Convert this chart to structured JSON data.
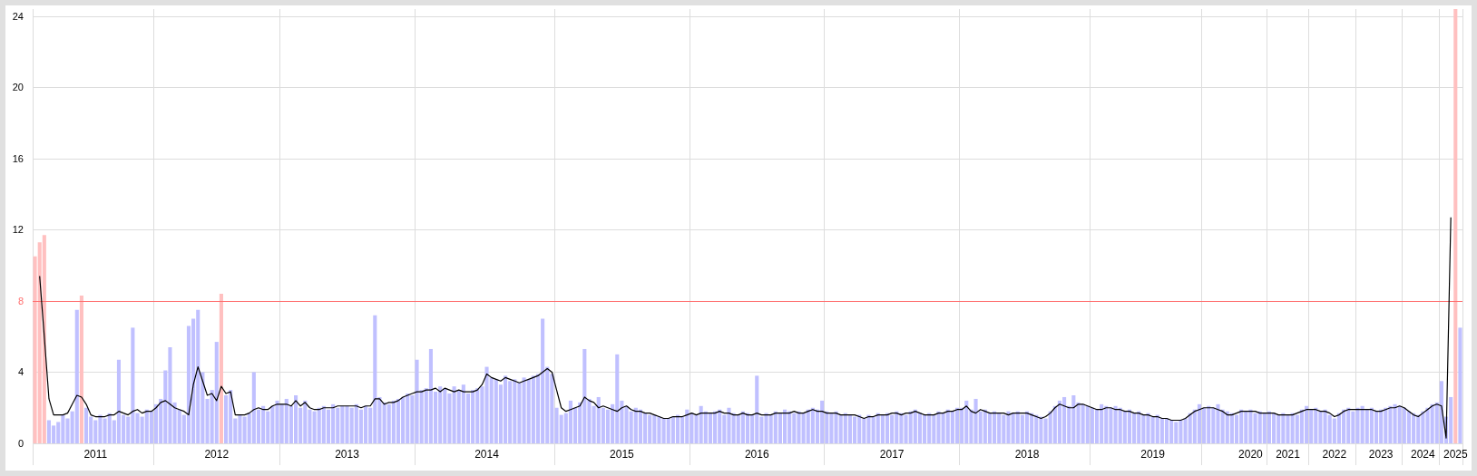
{
  "chart_data": {
    "type": "bar",
    "ylim": [
      0,
      24.4
    ],
    "yticks": [
      0,
      4,
      8,
      12,
      16,
      20,
      24
    ],
    "categories": [
      null,
      null,
      null,
      null,
      null,
      null,
      null,
      null,
      null,
      null,
      null,
      null,
      null,
      "2011",
      null,
      null,
      null,
      null,
      null,
      null,
      null,
      null,
      null,
      null,
      null,
      null,
      null,
      null,
      null,
      null,
      null,
      null,
      null,
      null,
      null,
      null,
      null,
      null,
      null,
      "2012",
      null,
      null,
      null,
      null,
      null,
      null,
      null,
      null,
      null,
      null,
      null,
      null,
      null,
      null,
      null,
      null,
      null,
      null,
      null,
      null,
      null,
      null,
      null,
      null,
      null,
      null,
      null,
      "2013",
      null,
      null,
      null,
      null,
      null,
      null,
      null,
      null,
      null,
      null,
      null,
      null,
      null,
      null,
      null,
      null,
      null,
      null,
      null,
      null,
      null,
      null,
      null,
      null,
      null,
      null,
      null,
      null,
      null,
      "2014",
      null,
      null,
      null,
      null,
      null,
      null,
      null,
      null,
      null,
      null,
      null,
      null,
      null,
      null,
      null,
      null,
      null,
      null,
      null,
      null,
      null,
      null,
      null,
      null,
      null,
      null,
      null,
      null,
      "2015",
      null,
      null,
      null,
      null,
      null,
      null,
      null,
      null,
      null,
      null,
      null,
      null,
      null,
      null,
      null,
      null,
      null,
      null,
      null,
      null,
      null,
      null,
      null,
      null,
      null,
      null,
      null,
      null,
      "2016",
      null,
      null,
      null,
      null,
      null,
      null,
      null,
      null,
      null,
      null,
      null,
      null,
      null,
      null,
      null,
      null,
      null,
      null,
      null,
      null,
      null,
      null,
      null,
      null,
      null,
      null,
      null,
      null,
      "2017",
      null,
      null,
      null,
      null,
      null,
      null,
      null,
      null,
      null,
      null,
      null,
      null,
      null,
      null,
      null,
      null,
      null,
      null,
      null,
      null,
      null,
      null,
      null,
      null,
      null,
      null,
      null,
      null,
      "2018",
      null,
      null,
      null,
      null,
      null,
      null,
      null,
      null,
      null,
      null,
      null,
      null,
      null,
      null,
      null,
      null,
      null,
      null,
      null,
      null,
      null,
      null,
      null,
      null,
      null,
      null,
      "2019",
      null,
      null,
      null,
      null,
      null,
      null,
      null,
      null,
      null,
      null,
      null,
      null,
      null,
      null,
      null,
      null,
      null,
      null,
      null,
      null,
      "2020",
      null,
      null,
      null,
      null,
      null,
      null,
      null,
      "2021",
      null,
      null,
      null,
      null,
      null,
      null,
      null,
      null,
      null,
      "2022",
      null,
      null,
      null,
      null,
      null,
      null,
      null,
      null,
      null,
      "2023",
      null,
      null,
      null,
      null,
      null,
      null,
      null,
      null,
      "2024",
      null,
      null,
      null,
      null,
      null,
      null,
      "2025",
      null
    ],
    "grid": true,
    "series": [
      {
        "color": "#c0c0ff",
        "values": [
          null,
          null,
          null,
          1.3,
          1.0,
          1.2,
          1.6,
          1.4,
          1.8,
          7.5,
          null,
          2.0,
          1.5,
          1.3,
          1.6,
          1.4,
          1.7,
          1.3,
          4.7,
          1.6,
          1.5,
          6.5,
          1.7,
          1.5,
          1.9,
          1.8,
          2.2,
          2.5,
          4.1,
          5.4,
          2.3,
          1.9,
          1.6,
          6.6,
          7.0,
          7.5,
          4.0,
          2.5,
          3.0,
          5.7,
          null,
          2.7,
          3.0,
          1.4,
          1.6,
          1.5,
          1.7,
          4.0,
          1.9,
          2.1,
          1.8,
          2.1,
          2.4,
          2.2,
          2.5,
          2.1,
          2.7,
          2.0,
          2.4,
          1.9,
          1.8,
          2.0,
          2.1,
          1.9,
          2.2,
          2.0,
          2.1,
          2.1,
          2.0,
          2.2,
          1.9,
          2.1,
          2.0,
          7.2,
          2.6,
          2.3,
          2.2,
          2.4,
          2.5,
          2.6,
          2.8,
          2.7,
          4.7,
          3.0,
          3.1,
          5.3,
          2.9,
          3.2,
          3.1,
          2.8,
          3.2,
          3.0,
          3.3,
          2.8,
          3.0,
          3.1,
          3.2,
          4.3,
          3.7,
          3.6,
          3.3,
          3.8,
          3.5,
          3.6,
          3.4,
          3.7,
          3.6,
          3.8,
          3.9,
          7.0,
          4.3,
          3.9,
          2.0,
          1.6,
          1.7,
          2.4,
          2.0,
          2.3,
          5.3,
          2.5,
          2.1,
          2.6,
          2.0,
          1.9,
          2.2,
          5.0,
          2.4,
          2.1,
          1.8,
          2.0,
          1.9,
          1.7,
          1.6,
          1.6,
          1.5,
          1.4,
          1.4,
          1.5,
          1.6,
          1.5,
          1.9,
          1.7,
          1.6,
          2.1,
          1.8,
          1.7,
          1.8,
          1.9,
          1.6,
          2.0,
          1.7,
          1.6,
          1.8,
          1.7,
          1.6,
          3.8,
          1.5,
          1.7,
          1.6,
          1.8,
          1.7,
          1.9,
          1.8,
          1.7,
          1.8,
          1.7,
          1.9,
          2.0,
          1.9,
          2.4,
          1.8,
          1.7,
          1.8,
          1.6,
          1.7,
          1.6,
          1.5,
          1.6,
          1.4,
          1.6,
          1.5,
          1.7,
          1.6,
          1.7,
          1.6,
          1.8,
          1.7,
          1.6,
          1.8,
          1.9,
          1.7,
          1.6,
          1.7,
          1.6,
          1.8,
          1.7,
          1.9,
          1.8,
          2.0,
          2.0,
          2.4,
          1.9,
          2.5,
          1.8,
          1.9,
          1.7,
          1.8,
          1.7,
          1.6,
          1.8,
          1.7,
          1.8,
          1.6,
          1.8,
          1.7,
          1.6,
          1.5,
          1.4,
          1.8,
          2.1,
          2.4,
          2.6,
          2.1,
          2.7,
          2.3,
          2.2,
          2.1,
          2.0,
          1.9,
          2.2,
          2.1,
          2.0,
          2.1,
          2.0,
          1.8,
          1.9,
          1.7,
          1.8,
          1.6,
          1.7,
          1.5,
          1.6,
          1.4,
          1.4,
          1.3,
          1.2,
          1.3,
          1.4,
          1.7,
          1.9,
          2.2,
          2.0,
          2.1,
          2.0,
          2.2,
          1.9,
          1.8,
          1.7,
          1.6,
          1.9,
          1.8,
          1.9,
          1.7,
          1.8,
          1.7,
          1.8,
          1.7,
          1.6,
          1.7,
          1.6,
          1.7,
          1.6,
          1.9,
          2.1,
          1.9,
          2.0,
          1.8,
          1.9,
          1.6,
          1.4,
          1.7,
          1.9,
          2.0,
          1.8,
          2.0,
          2.1,
          1.9,
          2.0,
          1.8,
          1.9,
          2.0,
          2.1,
          2.2,
          2.1,
          2.0,
          1.8,
          1.7,
          1.6,
          1.8,
          2.0,
          2.2,
          2.3,
          3.5,
          1.5,
          2.6,
          null,
          6.5
        ]
      },
      {
        "color": "#ffc0c0",
        "values": [
          10.5,
          11.3,
          11.7,
          null,
          null,
          null,
          null,
          null,
          null,
          null,
          8.3,
          null,
          null,
          null,
          null,
          null,
          null,
          null,
          null,
          null,
          null,
          null,
          null,
          null,
          null,
          null,
          null,
          null,
          null,
          null,
          null,
          null,
          null,
          null,
          null,
          null,
          null,
          null,
          null,
          null,
          8.4,
          null,
          null,
          null,
          null,
          null,
          null,
          null,
          null,
          null,
          null,
          null,
          null,
          null,
          null,
          null,
          null,
          null,
          null,
          null,
          null,
          null,
          null,
          null,
          null,
          null,
          null,
          null,
          null,
          null,
          null,
          null,
          null,
          null,
          null,
          null,
          null,
          null,
          null,
          null,
          null,
          null,
          null,
          null,
          null,
          null,
          null,
          null,
          null,
          null,
          null,
          null,
          null,
          null,
          null,
          null,
          null,
          null,
          null,
          null,
          null,
          null,
          null,
          null,
          null,
          null,
          null,
          null,
          null,
          null,
          null,
          null,
          null,
          null,
          null,
          null,
          null,
          null,
          null,
          null,
          null,
          null,
          null,
          null,
          null,
          null,
          null,
          null,
          null,
          null,
          null,
          null,
          null,
          null,
          null,
          null,
          null,
          null,
          null,
          null,
          null,
          null,
          null,
          null,
          null,
          null,
          null,
          null,
          null,
          null,
          null,
          null,
          null,
          null,
          null,
          null,
          null,
          null,
          null,
          null,
          null,
          null,
          null,
          null,
          null,
          null,
          null,
          null,
          null,
          null,
          null,
          null,
          null,
          null,
          null,
          null,
          null,
          null,
          null,
          null,
          null,
          null,
          null,
          null,
          null,
          null,
          null,
          null,
          null,
          null,
          null,
          null,
          null,
          null,
          null,
          null,
          null,
          null,
          null,
          null,
          null,
          null,
          null,
          null,
          null,
          null,
          null,
          null,
          null,
          null,
          null,
          null,
          null,
          null,
          null,
          null,
          null,
          null,
          null,
          null,
          null,
          null,
          null,
          null,
          null,
          null,
          null,
          null,
          null,
          null,
          null,
          null,
          null,
          null,
          null,
          null,
          null,
          null,
          null,
          null,
          null,
          null,
          null,
          null,
          null,
          null,
          null,
          null,
          null,
          null,
          null,
          null,
          null,
          null,
          null,
          null,
          null,
          null,
          null,
          null,
          null,
          null,
          null,
          null,
          null,
          null,
          null,
          null,
          null,
          null,
          null,
          null,
          null,
          null,
          null,
          null,
          null,
          null,
          null,
          null,
          null,
          null,
          null,
          null,
          null,
          null,
          null,
          null,
          null,
          null,
          null,
          null,
          null,
          null,
          null,
          null,
          null,
          null,
          null,
          null,
          null,
          null,
          null,
          null,
          null,
          24.4,
          null
        ]
      },
      {
        "type": "line",
        "color": "#000000",
        "values": [
          null,
          9.4,
          6.0,
          2.5,
          1.6,
          1.6,
          1.6,
          1.7,
          2.2,
          2.7,
          2.6,
          2.2,
          1.6,
          1.5,
          1.5,
          1.5,
          1.6,
          1.6,
          1.8,
          1.7,
          1.6,
          1.8,
          1.9,
          1.7,
          1.8,
          1.8,
          2.0,
          2.3,
          2.4,
          2.2,
          2.0,
          1.9,
          1.8,
          1.6,
          3.3,
          4.3,
          3.5,
          2.7,
          2.8,
          2.4,
          3.2,
          2.8,
          2.9,
          1.6,
          1.6,
          1.6,
          1.7,
          1.9,
          2.0,
          1.9,
          1.9,
          2.1,
          2.2,
          2.2,
          2.2,
          2.1,
          2.4,
          2.1,
          2.3,
          2.0,
          1.9,
          1.9,
          2.0,
          2.0,
          2.0,
          2.1,
          2.1,
          2.1,
          2.1,
          2.1,
          2.0,
          2.1,
          2.1,
          2.5,
          2.5,
          2.2,
          2.3,
          2.3,
          2.4,
          2.6,
          2.7,
          2.8,
          2.9,
          2.9,
          3.0,
          3.0,
          3.1,
          2.9,
          3.1,
          3.0,
          2.9,
          3.0,
          2.9,
          2.9,
          2.9,
          3.0,
          3.3,
          3.9,
          3.7,
          3.6,
          3.5,
          3.7,
          3.6,
          3.5,
          3.4,
          3.5,
          3.6,
          3.7,
          3.8,
          4.0,
          4.2,
          4.0,
          3.0,
          2.0,
          1.8,
          1.9,
          2.0,
          2.1,
          2.6,
          2.4,
          2.3,
          2.0,
          2.1,
          2.0,
          1.9,
          1.8,
          2.0,
          2.1,
          1.9,
          1.8,
          1.8,
          1.7,
          1.7,
          1.6,
          1.5,
          1.4,
          1.4,
          1.5,
          1.5,
          1.5,
          1.6,
          1.7,
          1.6,
          1.7,
          1.7,
          1.7,
          1.7,
          1.8,
          1.7,
          1.7,
          1.6,
          1.6,
          1.7,
          1.6,
          1.6,
          1.7,
          1.6,
          1.6,
          1.6,
          1.7,
          1.7,
          1.7,
          1.7,
          1.8,
          1.7,
          1.7,
          1.8,
          1.9,
          1.8,
          1.8,
          1.7,
          1.7,
          1.7,
          1.6,
          1.6,
          1.6,
          1.6,
          1.5,
          1.4,
          1.5,
          1.5,
          1.6,
          1.6,
          1.6,
          1.7,
          1.7,
          1.6,
          1.7,
          1.7,
          1.8,
          1.7,
          1.6,
          1.6,
          1.6,
          1.7,
          1.7,
          1.8,
          1.8,
          1.9,
          1.9,
          2.1,
          1.8,
          1.7,
          1.9,
          1.8,
          1.7,
          1.7,
          1.7,
          1.7,
          1.6,
          1.7,
          1.7,
          1.7,
          1.7,
          1.6,
          1.5,
          1.4,
          1.5,
          1.7,
          2.0,
          2.2,
          2.1,
          2.0,
          2.0,
          2.2,
          2.2,
          2.1,
          2.0,
          1.9,
          1.9,
          2.0,
          2.0,
          1.9,
          1.9,
          1.8,
          1.8,
          1.7,
          1.7,
          1.6,
          1.6,
          1.5,
          1.5,
          1.4,
          1.4,
          1.3,
          1.3,
          1.3,
          1.4,
          1.6,
          1.8,
          1.9,
          2.0,
          2.0,
          2.0,
          1.9,
          1.8,
          1.6,
          1.6,
          1.7,
          1.8,
          1.8,
          1.8,
          1.8,
          1.7,
          1.7,
          1.7,
          1.7,
          1.6,
          1.6,
          1.6,
          1.6,
          1.7,
          1.8,
          1.9,
          1.9,
          1.9,
          1.8,
          1.8,
          1.7,
          1.5,
          1.6,
          1.8,
          1.9,
          1.9,
          1.9,
          1.9,
          1.9,
          1.9,
          1.8,
          1.8,
          1.9,
          2.0,
          2.0,
          2.1,
          2.0,
          1.8,
          1.6,
          1.5,
          1.7,
          1.9,
          2.1,
          2.2,
          2.1,
          0.3,
          12.7,
          null,
          null
        ]
      }
    ],
    "ref_lines": [
      {
        "axis": "y",
        "value": 8,
        "color": "#ff7070"
      }
    ]
  }
}
